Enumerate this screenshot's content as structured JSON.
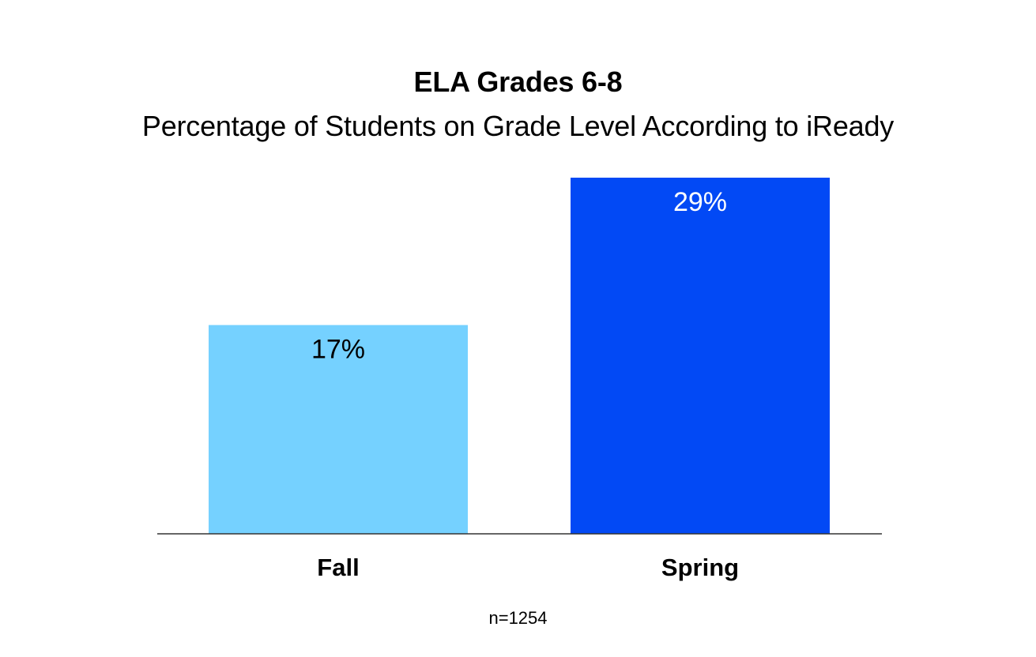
{
  "chart_data": {
    "type": "bar",
    "title": "ELA Grades 6-8",
    "subtitle": "Percentage of Students on Grade Level According to iReady",
    "categories": [
      "Fall",
      "Spring"
    ],
    "values": [
      17,
      29
    ],
    "data_labels": [
      "17%",
      "29%"
    ],
    "colors": [
      "#75D1FF",
      "#0249F5"
    ],
    "label_colors": [
      "#000000",
      "#ffffff"
    ],
    "ylim": [
      0,
      29
    ],
    "xlabel": "",
    "ylabel": "",
    "grid": false,
    "legend": "none"
  },
  "footnote": "n=1254"
}
